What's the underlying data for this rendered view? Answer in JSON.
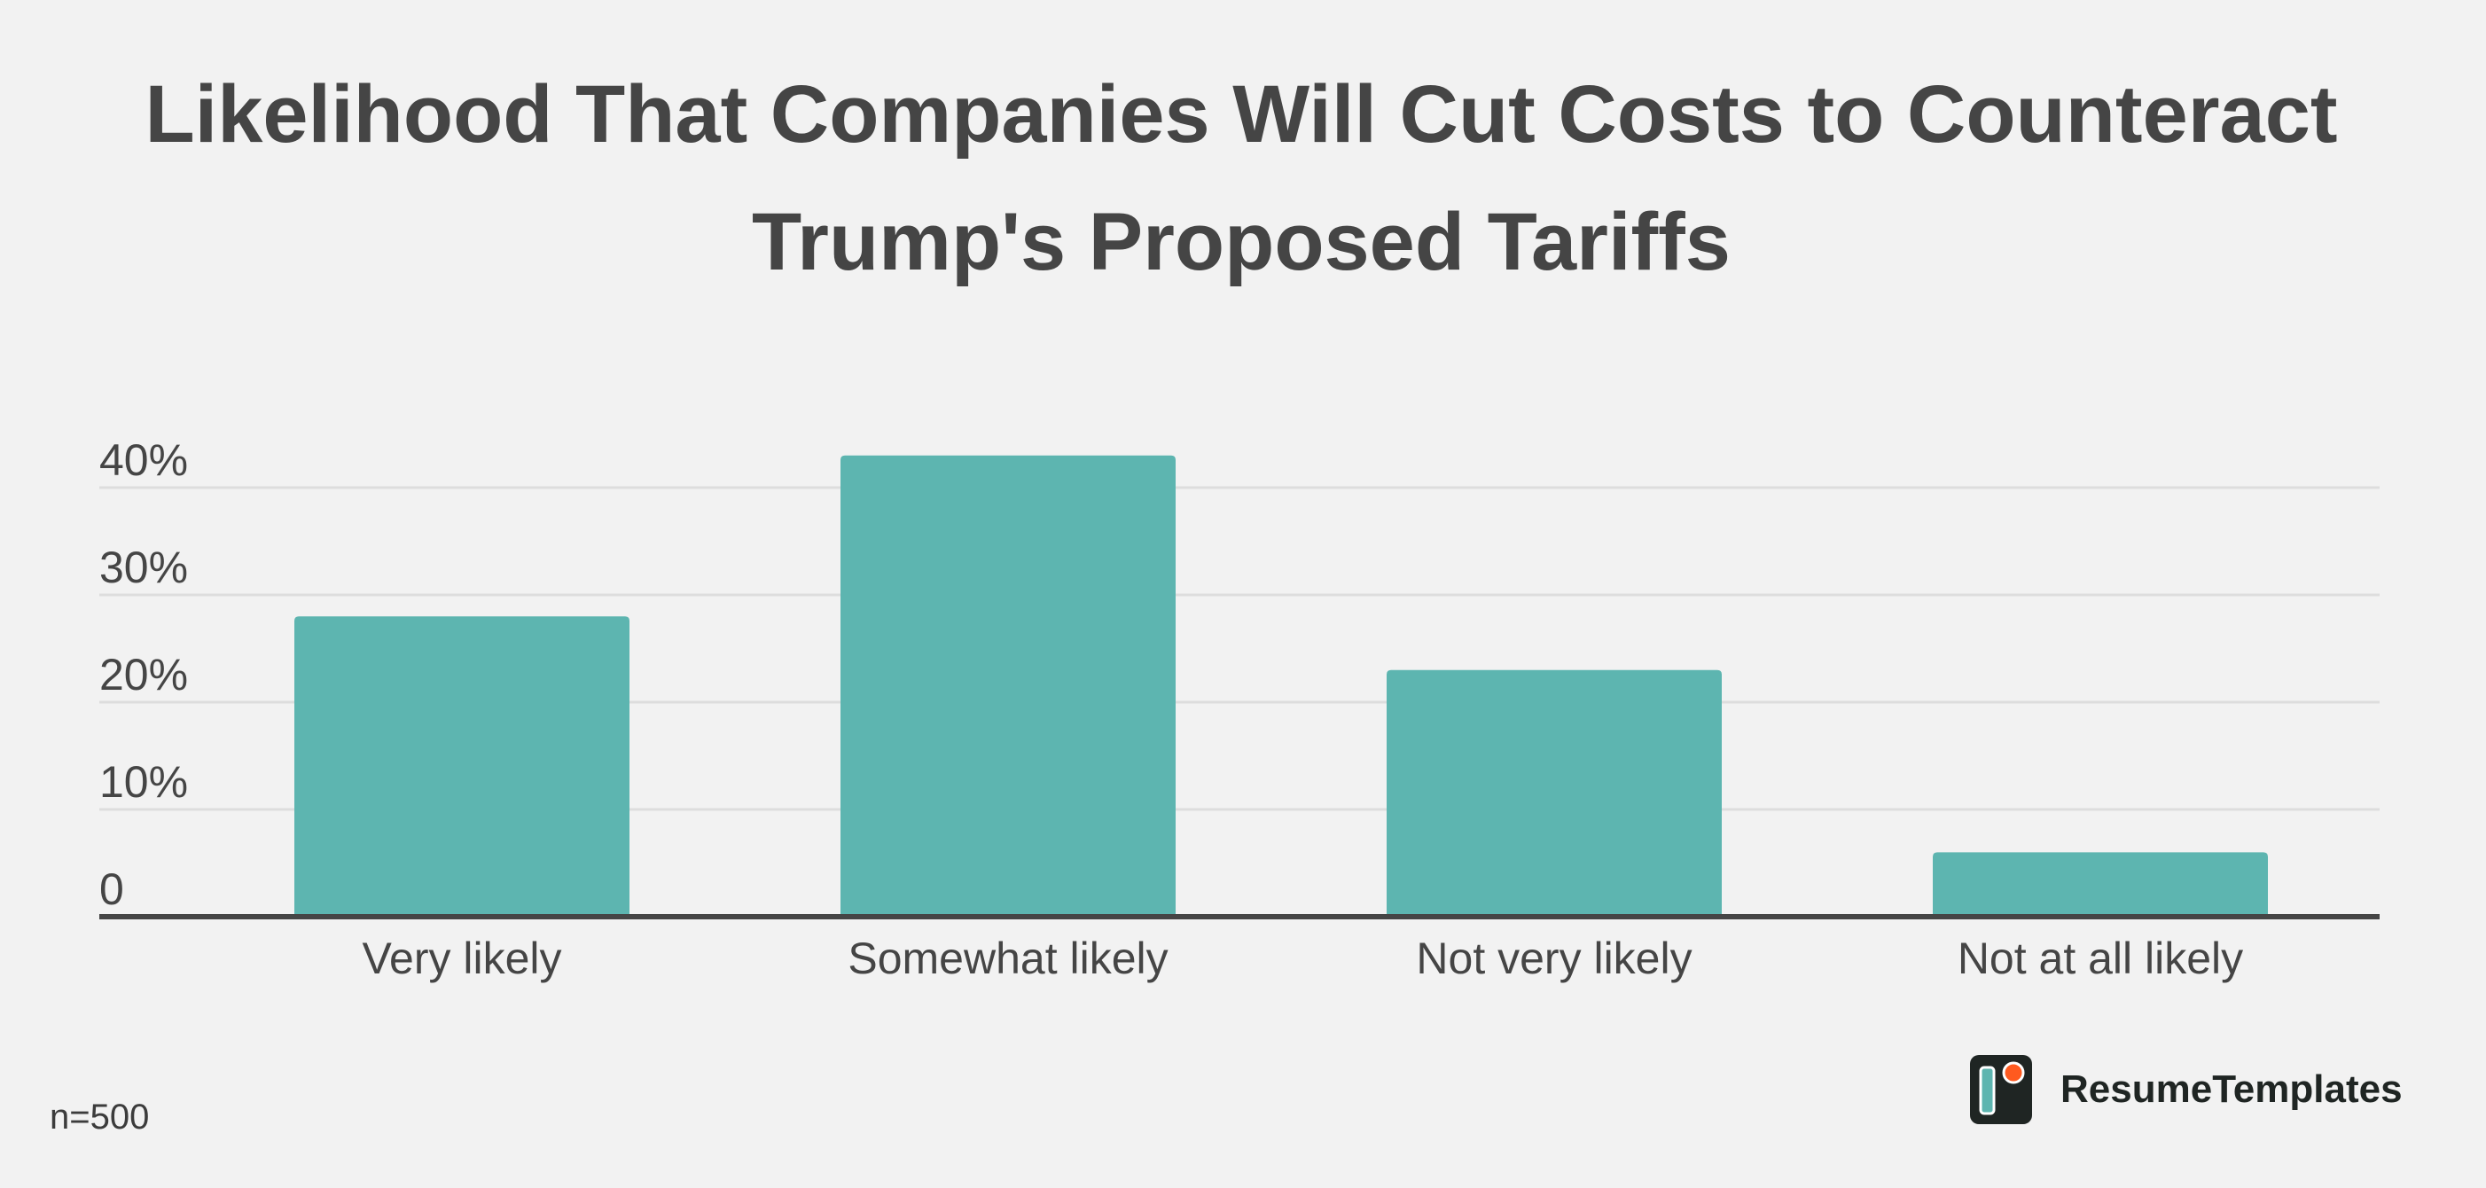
{
  "chart_data": {
    "type": "bar",
    "title_lines": [
      "Likelihood That Companies Will Cut Costs to Counteract",
      "Trump's Proposed Tariffs"
    ],
    "categories": [
      "Very likely",
      "Somewhat likely",
      "Not very likely",
      "Not at all likely"
    ],
    "values": [
      28,
      43,
      23,
      6
    ],
    "unit": "%",
    "yticks": [
      {
        "value": 0,
        "label": "0"
      },
      {
        "value": 10,
        "label": "10%"
      },
      {
        "value": 20,
        "label": "20%"
      },
      {
        "value": 30,
        "label": "30%"
      },
      {
        "value": 40,
        "label": "40%"
      }
    ],
    "ylim": [
      0,
      40
    ],
    "grid": true,
    "bar_color": "#5db5b0",
    "grid_color": "#dddddd",
    "axis_color": "#454545"
  },
  "footnote": "n=500",
  "brand": {
    "name": "ResumeTemplates",
    "logo_icon": "resumetemplates-logo-icon",
    "logo_color": "#1f2523",
    "logo_accent": "#ff5a1f",
    "logo_bar_color": "#5db5b0"
  }
}
